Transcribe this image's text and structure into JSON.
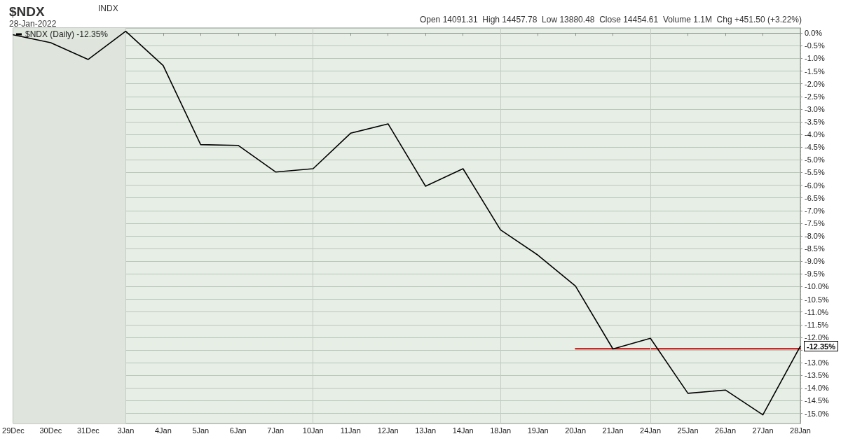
{
  "chart_data": {
    "type": "line",
    "title": "$NDX",
    "subtitle": "28-Jan-2022",
    "annotations": [
      "INDX",
      "Open 14091.31  High 14457.78  Low 13880.48  Close 14454.61  Volume 1.1M  Chg +451.50 (+3.22%)",
      {
        "text": "-12.35%",
        "x": "28Jan",
        "y": -12.35
      }
    ],
    "categories": [
      "29Dec",
      "30Dec",
      "31Dec",
      "3Jan",
      "4Jan",
      "5Jan",
      "6Jan",
      "7Jan",
      "10Jan",
      "11Jan",
      "12Jan",
      "13Jan",
      "14Jan",
      "18Jan",
      "19Jan",
      "20Jan",
      "21Jan",
      "24Jan",
      "25Jan",
      "26Jan",
      "27Jan",
      "28Jan"
    ],
    "series": [
      {
        "name": "$NDX (Daily) -12.35%",
        "color": "#000000",
        "values": [
          -0.07,
          -0.38,
          -1.04,
          0.07,
          -1.28,
          -4.4,
          -4.43,
          -5.48,
          -5.35,
          -3.95,
          -3.58,
          -6.04,
          -5.35,
          -7.76,
          -8.76,
          -9.98,
          -12.46,
          -12.04,
          -14.21,
          -14.08,
          -15.06,
          -12.35
        ]
      },
      {
        "type": "line",
        "color": "#cc0000",
        "x": [
          "20Jan",
          "28Jan"
        ],
        "values": [
          -12.45,
          -12.45
        ]
      }
    ],
    "ylim": [
      -15.4,
      0.2
    ],
    "yticks": [
      {
        "value": 0,
        "label": "0.0%"
      },
      {
        "value": -0.5,
        "label": "-0.5%"
      },
      {
        "value": -1,
        "label": "-1.0%"
      },
      {
        "value": -1.5,
        "label": "-1.5%"
      },
      {
        "value": -2,
        "label": "-2.0%"
      },
      {
        "value": -2.5,
        "label": "-2.5%"
      },
      {
        "value": -3,
        "label": "-3.0%"
      },
      {
        "value": -3.5,
        "label": "-3.5%"
      },
      {
        "value": -4,
        "label": "-4.0%"
      },
      {
        "value": -4.5,
        "label": "-4.5%"
      },
      {
        "value": -5,
        "label": "-5.0%"
      },
      {
        "value": -5.5,
        "label": "-5.5%"
      },
      {
        "value": -6,
        "label": "-6.0%"
      },
      {
        "value": -6.5,
        "label": "-6.5%"
      },
      {
        "value": -7,
        "label": "-7.0%"
      },
      {
        "value": -7.5,
        "label": "-7.5%"
      },
      {
        "value": -8,
        "label": "-8.0%"
      },
      {
        "value": -8.5,
        "label": "-8.5%"
      },
      {
        "value": -9,
        "label": "-9.0%"
      },
      {
        "value": -9.5,
        "label": "-9.5%"
      },
      {
        "value": -10,
        "label": "-10.0%"
      },
      {
        "value": -10.5,
        "label": "-10.5%"
      },
      {
        "value": -11,
        "label": "-11.0%"
      },
      {
        "value": -11.5,
        "label": "-11.5%"
      },
      {
        "value": -12,
        "label": "-12.0%"
      },
      {
        "value": -12.5,
        "label": null
      },
      {
        "value": -13,
        "label": "-13.0%"
      },
      {
        "value": -13.5,
        "label": "-13.5%"
      },
      {
        "value": -14,
        "label": "-14.0%"
      },
      {
        "value": -14.5,
        "label": "-14.5%"
      },
      {
        "value": -15,
        "label": "-15.0%"
      }
    ],
    "ref_lines": [
      {
        "axis": "x",
        "value": "3Jan",
        "color": "#c4ccc4"
      },
      {
        "axis": "x",
        "value": "10Jan",
        "color": "#c4ccc4"
      },
      {
        "axis": "x",
        "value": "18Jan",
        "color": "#c4ccc4"
      },
      {
        "axis": "x",
        "value": "24Jan",
        "color": "#c4ccc4"
      }
    ],
    "bands": [
      {
        "axis": "x",
        "from": "29Dec",
        "to": "3Jan",
        "color": "#dfe5dd"
      }
    ],
    "grid": "y",
    "legend": "top left",
    "marker": "none",
    "line_style": "solid"
  }
}
